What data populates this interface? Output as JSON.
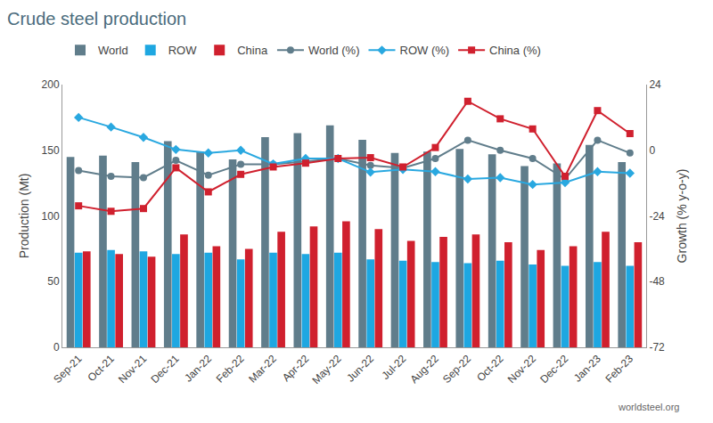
{
  "chart_data": {
    "type": "bar",
    "title": "Crude steel production",
    "y_label": "Production (Mt)",
    "y2_label": "Growth (% y-o-y)",
    "annotations": [
      "worldsteel.org"
    ],
    "categories": [
      "Sep-21",
      "Oct-21",
      "Nov-21",
      "Dec-21",
      "Jan-22",
      "Feb-22",
      "Mar-22",
      "Apr-22",
      "May-22",
      "Jun-22",
      "Jul-22",
      "Aug-22",
      "Sep-22",
      "Oct-22",
      "Nov-22",
      "Dec-22",
      "Jan-23",
      "Feb-23"
    ],
    "ylim": [
      0,
      200
    ],
    "yticks": [
      0,
      50,
      100,
      150,
      200
    ],
    "y2lim": [
      -72,
      24
    ],
    "y2ticks": [
      -72,
      -48,
      -24,
      0,
      24
    ],
    "grid": false,
    "legend": "top",
    "series": [
      {
        "name": "World",
        "type": "bar",
        "color": "#607d8b",
        "values": [
          145,
          146,
          141,
          157,
          149,
          143,
          160,
          163,
          169,
          158,
          148,
          149,
          151,
          147,
          138,
          140,
          154,
          141
        ]
      },
      {
        "name": "ROW",
        "type": "bar",
        "color": "#1ea7e1",
        "values": [
          72,
          74,
          73,
          71,
          72,
          67,
          72,
          71,
          72,
          67,
          66,
          65,
          64,
          66,
          63,
          62,
          65,
          62
        ]
      },
      {
        "name": "China",
        "type": "bar",
        "color": "#d0202e",
        "values": [
          73,
          71,
          69,
          86,
          77,
          75,
          88,
          92,
          96,
          90,
          81,
          84,
          86,
          80,
          74,
          77,
          88,
          80
        ]
      },
      {
        "name": "World (%)",
        "type": "line",
        "axis": "y2",
        "color": "#607d8b",
        "marker": "circle",
        "values": [
          -7.4,
          -9.5,
          -10,
          -3.7,
          -9.1,
          -5.1,
          -5.1,
          -4,
          -3,
          -5.5,
          -6.5,
          -3,
          3.7,
          0,
          -3,
          -10.5,
          3.7,
          -1
        ]
      },
      {
        "name": "ROW (%)",
        "type": "line",
        "axis": "y2",
        "color": "#29a8e0",
        "marker": "diamond",
        "values": [
          12,
          8.5,
          4.7,
          0.3,
          -1,
          0,
          -5,
          -3,
          -3,
          -8,
          -7,
          -7.8,
          -10.5,
          -10,
          -12.5,
          -11.8,
          -7.8,
          -8.4
        ]
      },
      {
        "name": "China (%)",
        "type": "line",
        "axis": "y2",
        "color": "#d0202e",
        "marker": "square",
        "values": [
          -20.3,
          -22.3,
          -21.3,
          -6.4,
          -15.2,
          -8.8,
          -6.1,
          -4.7,
          -3,
          -2.7,
          -6.1,
          1,
          17.9,
          11.5,
          7.8,
          -9.5,
          14.5,
          6.1
        ]
      }
    ]
  }
}
